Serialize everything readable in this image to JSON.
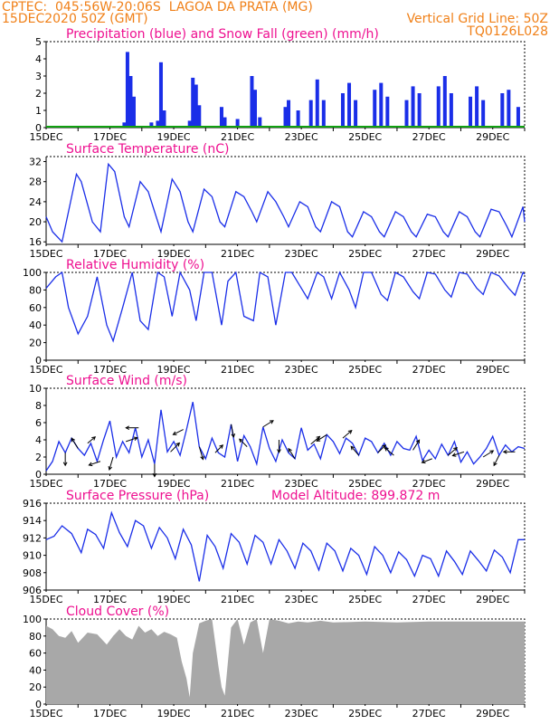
{
  "header": {
    "line1": "CPTEC:  045:56W-20:06S  LAGOA DA PRATA (MG)",
    "line2_left": "15DEC2020 50Z (GMT)",
    "line2_right": "Vertical Grid Line: 50Z",
    "line3_right": "TQ0126L028"
  },
  "colors": {
    "header": "#f08018",
    "title": "#ee1090",
    "line": "#1a2ee8",
    "precip": "#1a2ee8",
    "snow": "#10a010",
    "cloud": "#a8a8a8",
    "wind_arrow": "#000000"
  },
  "chart_data": [
    {
      "id": "precip",
      "type": "bar",
      "title": "Precipitation (blue) and Snow Fall (green) (mm/h)",
      "ylim": [
        0,
        5
      ],
      "yticks": [
        0,
        1,
        2,
        3,
        4,
        5
      ],
      "x_labels": [
        "15DEC",
        "17DEC",
        "19DEC",
        "21DEC",
        "23DEC",
        "25DEC",
        "27DEC",
        "29DEC"
      ],
      "x_note": "Hourly bars, 15DEC to 30DEC; snow fall is 0 throughout",
      "values": [
        {
          "day": 17.45,
          "v": 0.3
        },
        {
          "day": 17.55,
          "v": 4.4
        },
        {
          "day": 17.65,
          "v": 3.0
        },
        {
          "day": 17.75,
          "v": 1.8
        },
        {
          "day": 18.3,
          "v": 0.3
        },
        {
          "day": 18.5,
          "v": 0.4
        },
        {
          "day": 18.6,
          "v": 3.8
        },
        {
          "day": 18.7,
          "v": 1.0
        },
        {
          "day": 19.5,
          "v": 0.4
        },
        {
          "day": 19.6,
          "v": 2.9
        },
        {
          "day": 19.7,
          "v": 2.5
        },
        {
          "day": 19.8,
          "v": 1.3
        },
        {
          "day": 20.5,
          "v": 1.2
        },
        {
          "day": 20.6,
          "v": 0.6
        },
        {
          "day": 21.0,
          "v": 0.5
        },
        {
          "day": 21.45,
          "v": 3.0
        },
        {
          "day": 21.55,
          "v": 2.2
        },
        {
          "day": 21.7,
          "v": 0.6
        },
        {
          "day": 22.5,
          "v": 1.2
        },
        {
          "day": 22.6,
          "v": 1.6
        },
        {
          "day": 22.9,
          "v": 1.0
        },
        {
          "day": 23.3,
          "v": 1.6
        },
        {
          "day": 23.5,
          "v": 2.8
        },
        {
          "day": 23.7,
          "v": 1.6
        },
        {
          "day": 24.3,
          "v": 2.0
        },
        {
          "day": 24.5,
          "v": 2.6
        },
        {
          "day": 24.7,
          "v": 1.6
        },
        {
          "day": 25.3,
          "v": 2.2
        },
        {
          "day": 25.5,
          "v": 2.6
        },
        {
          "day": 25.7,
          "v": 1.8
        },
        {
          "day": 26.3,
          "v": 1.6
        },
        {
          "day": 26.5,
          "v": 2.4
        },
        {
          "day": 26.7,
          "v": 2.0
        },
        {
          "day": 27.3,
          "v": 2.4
        },
        {
          "day": 27.5,
          "v": 3.0
        },
        {
          "day": 27.7,
          "v": 2.0
        },
        {
          "day": 28.3,
          "v": 1.8
        },
        {
          "day": 28.5,
          "v": 2.4
        },
        {
          "day": 28.7,
          "v": 1.6
        },
        {
          "day": 29.3,
          "v": 2.0
        },
        {
          "day": 29.5,
          "v": 2.2
        },
        {
          "day": 29.8,
          "v": 1.2
        }
      ]
    },
    {
      "id": "temperature",
      "type": "line",
      "title": "Surface Temperature (nC)",
      "ylim": [
        15.5,
        33
      ],
      "yticks": [
        16,
        20,
        24,
        28,
        32
      ],
      "x_labels": [
        "15DEC",
        "17DEC",
        "19DEC",
        "21DEC",
        "23DEC",
        "25DEC",
        "27DEC",
        "29DEC"
      ],
      "x": [
        15.0,
        15.2,
        15.5,
        15.7,
        15.95,
        16.1,
        16.45,
        16.7,
        16.95,
        17.15,
        17.45,
        17.6,
        17.95,
        18.2,
        18.45,
        18.6,
        18.95,
        19.2,
        19.45,
        19.6,
        19.95,
        20.2,
        20.45,
        20.6,
        20.95,
        21.2,
        21.45,
        21.6,
        21.95,
        22.2,
        22.45,
        22.6,
        22.95,
        23.2,
        23.45,
        23.6,
        23.95,
        24.2,
        24.45,
        24.6,
        24.95,
        25.2,
        25.45,
        25.6,
        25.95,
        26.2,
        26.45,
        26.6,
        26.95,
        27.2,
        27.45,
        27.6,
        27.95,
        28.2,
        28.45,
        28.6,
        28.95,
        29.2,
        29.45,
        29.6,
        29.95,
        30.0
      ],
      "y": [
        21,
        18,
        16,
        22,
        29.5,
        28,
        20,
        18,
        31.5,
        30,
        21,
        19,
        28,
        26,
        21,
        18,
        28.5,
        26,
        20,
        18,
        26.5,
        25,
        20,
        19,
        26,
        25,
        22,
        20,
        26,
        24,
        21,
        19,
        24,
        23,
        19,
        18,
        24,
        23,
        18,
        17,
        22,
        21,
        18,
        17,
        22,
        21,
        18,
        17,
        21.5,
        21,
        18,
        17,
        22,
        21,
        18,
        17,
        22.5,
        22,
        19,
        17,
        23,
        20
      ]
    },
    {
      "id": "humidity",
      "type": "line",
      "title": "Relative Humidity (%)",
      "ylim": [
        0,
        100
      ],
      "yticks": [
        0,
        20,
        40,
        60,
        80,
        100
      ],
      "x_labels": [
        "15DEC",
        "17DEC",
        "19DEC",
        "21DEC",
        "23DEC",
        "25DEC",
        "27DEC",
        "29DEC"
      ],
      "x": [
        15.0,
        15.3,
        15.5,
        15.7,
        16.0,
        16.3,
        16.6,
        16.9,
        17.1,
        17.4,
        17.7,
        17.95,
        18.2,
        18.5,
        18.7,
        18.95,
        19.2,
        19.5,
        19.7,
        19.95,
        20.2,
        20.5,
        20.7,
        20.95,
        21.2,
        21.5,
        21.7,
        21.95,
        22.2,
        22.5,
        22.7,
        22.95,
        23.2,
        23.5,
        23.7,
        23.95,
        24.2,
        24.5,
        24.7,
        24.95,
        25.2,
        25.5,
        25.7,
        25.95,
        26.2,
        26.5,
        26.7,
        26.95,
        27.2,
        27.5,
        27.7,
        27.95,
        28.2,
        28.5,
        28.7,
        28.95,
        29.2,
        29.5,
        29.7,
        29.95,
        30.0
      ],
      "y": [
        82,
        95,
        100,
        60,
        30,
        50,
        95,
        40,
        22,
        60,
        100,
        45,
        35,
        100,
        95,
        50,
        100,
        80,
        45,
        100,
        100,
        40,
        90,
        100,
        50,
        45,
        100,
        95,
        40,
        100,
        100,
        85,
        70,
        100,
        95,
        70,
        100,
        80,
        60,
        100,
        100,
        75,
        68,
        100,
        95,
        78,
        70,
        100,
        98,
        80,
        72,
        100,
        98,
        82,
        75,
        100,
        96,
        82,
        74,
        100,
        98
      ]
    },
    {
      "id": "wind",
      "type": "line",
      "title": "Surface Wind (m/s)",
      "ylim": [
        0,
        10
      ],
      "yticks": [
        0,
        2,
        4,
        6,
        8,
        10
      ],
      "x_labels": [
        "15DEC",
        "17DEC",
        "19DEC",
        "21DEC",
        "23DEC",
        "25DEC",
        "27DEC",
        "29DEC"
      ],
      "x": [
        15.0,
        15.2,
        15.4,
        15.6,
        15.8,
        16.0,
        16.2,
        16.4,
        16.6,
        16.8,
        17.0,
        17.2,
        17.4,
        17.6,
        17.8,
        18.0,
        18.2,
        18.4,
        18.6,
        18.8,
        19.0,
        19.2,
        19.4,
        19.6,
        19.8,
        20.0,
        20.2,
        20.4,
        20.6,
        20.8,
        21.0,
        21.2,
        21.4,
        21.6,
        21.8,
        22.0,
        22.2,
        22.4,
        22.6,
        22.8,
        23.0,
        23.2,
        23.4,
        23.6,
        23.8,
        24.0,
        24.2,
        24.4,
        24.6,
        24.8,
        25.0,
        25.2,
        25.4,
        25.6,
        25.8,
        26.0,
        26.2,
        26.4,
        26.6,
        26.8,
        27.0,
        27.2,
        27.4,
        27.6,
        27.8,
        28.0,
        28.2,
        28.4,
        28.6,
        28.8,
        29.0,
        29.2,
        29.4,
        29.6,
        29.8,
        30.0
      ],
      "y": [
        0.4,
        1.5,
        3.8,
        2.5,
        4.2,
        3.0,
        2.2,
        3.6,
        1.5,
        4.0,
        6.2,
        2.0,
        3.8,
        2.5,
        5.4,
        2.0,
        4.0,
        1.2,
        7.5,
        2.6,
        3.8,
        2.2,
        5.2,
        8.4,
        3.2,
        1.8,
        4.2,
        2.5,
        2.0,
        5.8,
        1.5,
        4.5,
        3.2,
        1.2,
        5.5,
        3.0,
        1.5,
        4.0,
        2.5,
        1.8,
        5.4,
        2.8,
        3.5,
        1.8,
        4.6,
        3.8,
        2.4,
        4.2,
        3.6,
        2.2,
        4.2,
        3.8,
        2.5,
        3.6,
        2.2,
        3.8,
        3.0,
        2.8,
        4.4,
        1.6,
        2.8,
        1.8,
        3.5,
        2.2,
        3.8,
        1.4,
        2.6,
        1.2,
        2.0,
        3.0,
        4.4,
        2.2,
        3.4,
        2.6,
        3.2,
        3.0
      ],
      "arrows": [
        {
          "day": 15.6,
          "dx": 0,
          "dy": -1
        },
        {
          "day": 16.0,
          "dx": -0.5,
          "dy": 0.8
        },
        {
          "day": 16.3,
          "dx": 0.6,
          "dy": 0.5
        },
        {
          "day": 16.7,
          "dx": -0.9,
          "dy": -0.3
        },
        {
          "day": 17.1,
          "dx": -0.3,
          "dy": -1
        },
        {
          "day": 17.5,
          "dx": 0.9,
          "dy": 0.3
        },
        {
          "day": 17.9,
          "dx": -1,
          "dy": 0
        },
        {
          "day": 18.4,
          "dx": 0,
          "dy": -1
        },
        {
          "day": 18.9,
          "dx": 0.7,
          "dy": 0.7
        },
        {
          "day": 19.3,
          "dx": -0.8,
          "dy": -0.4
        },
        {
          "day": 19.8,
          "dx": 0.3,
          "dy": -1
        },
        {
          "day": 20.3,
          "dx": 0.6,
          "dy": 0.6
        },
        {
          "day": 20.8,
          "dx": 0.2,
          "dy": -1
        },
        {
          "day": 21.3,
          "dx": -0.6,
          "dy": 0.6
        },
        {
          "day": 21.8,
          "dx": 0.8,
          "dy": 0.5
        },
        {
          "day": 22.3,
          "dx": 0,
          "dy": -1
        },
        {
          "day": 22.8,
          "dx": -0.5,
          "dy": 0.8
        },
        {
          "day": 23.3,
          "dx": 0.7,
          "dy": 0.6
        },
        {
          "day": 23.8,
          "dx": -0.8,
          "dy": -0.5
        },
        {
          "day": 24.3,
          "dx": 0.7,
          "dy": 0.6
        },
        {
          "day": 24.8,
          "dx": -0.6,
          "dy": 0.7
        },
        {
          "day": 25.4,
          "dx": 0.6,
          "dy": 0.6
        },
        {
          "day": 25.9,
          "dx": -0.7,
          "dy": 0.6
        },
        {
          "day": 26.5,
          "dx": 0.5,
          "dy": 0.8
        },
        {
          "day": 27.1,
          "dx": -0.8,
          "dy": -0.3
        },
        {
          "day": 27.6,
          "dx": 0.7,
          "dy": 0.6
        },
        {
          "day": 28.1,
          "dx": -0.9,
          "dy": -0.3
        },
        {
          "day": 28.7,
          "dx": 0.8,
          "dy": 0.5
        },
        {
          "day": 29.2,
          "dx": -0.4,
          "dy": -0.8
        },
        {
          "day": 29.7,
          "dx": -0.9,
          "dy": 0
        }
      ]
    },
    {
      "id": "pressure",
      "type": "line",
      "title": "Surface Pressure (hPa)",
      "subtitle": "Model Altitude: 899.872 m",
      "ylim": [
        906,
        916
      ],
      "yticks": [
        906,
        908,
        910,
        912,
        914,
        916
      ],
      "x_labels": [
        "15DEC",
        "17DEC",
        "19DEC",
        "21DEC",
        "23DEC",
        "25DEC",
        "27DEC",
        "29DEC"
      ],
      "x": [
        15.0,
        15.25,
        15.5,
        15.8,
        16.1,
        16.3,
        16.55,
        16.8,
        17.05,
        17.3,
        17.55,
        17.8,
        18.05,
        18.3,
        18.55,
        18.8,
        19.05,
        19.3,
        19.55,
        19.8,
        20.05,
        20.3,
        20.55,
        20.8,
        21.05,
        21.3,
        21.55,
        21.8,
        22.05,
        22.3,
        22.55,
        22.8,
        23.05,
        23.3,
        23.55,
        23.8,
        24.05,
        24.3,
        24.55,
        24.8,
        25.05,
        25.3,
        25.55,
        25.8,
        26.05,
        26.3,
        26.55,
        26.8,
        27.05,
        27.3,
        27.55,
        27.8,
        28.05,
        28.3,
        28.55,
        28.8,
        29.05,
        29.3,
        29.55,
        29.8,
        30.0
      ],
      "y": [
        911.8,
        912.2,
        913.4,
        912.5,
        910.3,
        913.0,
        912.4,
        910.8,
        914.9,
        912.6,
        911.0,
        914.0,
        913.4,
        910.8,
        913.2,
        912.0,
        909.6,
        913.0,
        911.2,
        907.0,
        912.3,
        911.0,
        908.5,
        912.5,
        911.5,
        909.0,
        912.3,
        911.5,
        909.0,
        911.8,
        910.5,
        908.5,
        911.4,
        910.5,
        908.3,
        911.4,
        910.5,
        908.2,
        910.8,
        910.0,
        907.8,
        911.0,
        910.0,
        908.0,
        910.4,
        909.5,
        907.6,
        910.0,
        909.6,
        907.6,
        910.5,
        909.3,
        907.8,
        910.5,
        909.4,
        908.2,
        910.6,
        909.8,
        908.0,
        911.8,
        911.8
      ]
    },
    {
      "id": "cloud",
      "type": "area",
      "title": "Cloud Cover (%)",
      "ylim": [
        0,
        100
      ],
      "yticks": [
        0,
        20,
        40,
        60,
        80,
        100
      ],
      "x_labels": [
        "15DEC",
        "17DEC",
        "19DEC",
        "21DEC",
        "23DEC",
        "25DEC",
        "27DEC",
        "29DEC"
      ],
      "x": [
        15.0,
        15.2,
        15.4,
        15.6,
        15.8,
        16.0,
        16.3,
        16.6,
        16.9,
        17.1,
        17.3,
        17.5,
        17.7,
        17.9,
        18.1,
        18.3,
        18.5,
        18.7,
        18.9,
        19.1,
        19.25,
        19.4,
        19.5,
        19.6,
        19.8,
        20.0,
        20.2,
        20.4,
        20.5,
        20.6,
        20.8,
        21.0,
        21.2,
        21.4,
        21.6,
        21.8,
        22.0,
        22.3,
        22.6,
        22.9,
        23.2,
        23.6,
        24.0,
        25.0,
        26.0,
        27.0,
        28.0,
        29.0,
        30.0
      ],
      "y": [
        92,
        88,
        80,
        78,
        86,
        72,
        84,
        82,
        70,
        80,
        88,
        80,
        76,
        92,
        84,
        88,
        80,
        85,
        82,
        78,
        50,
        30,
        8,
        60,
        95,
        98,
        100,
        45,
        20,
        10,
        90,
        100,
        70,
        96,
        100,
        60,
        100,
        98,
        95,
        97,
        96,
        98,
        96,
        97,
        96,
        97,
        97,
        97,
        97
      ]
    }
  ]
}
